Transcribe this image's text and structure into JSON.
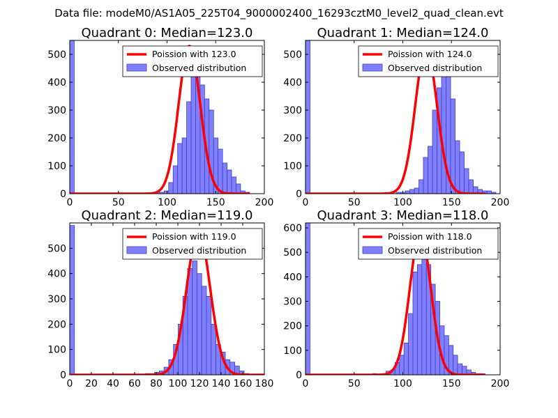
{
  "figure": {
    "suptitle": "Data file: modeM0/AS1A05_225T04_9000002400_16293cztM0_level2_quad_clean.evt",
    "colors": {
      "poisson_line": "#ff0000",
      "bar_fill": "#7f7fff",
      "bar_edge": "#3f3fbf"
    }
  },
  "chart_data": [
    {
      "type": "bar",
      "title": "Quadrant 0: Median=123.0",
      "xlim": [
        0,
        200
      ],
      "ylim": [
        0,
        550
      ],
      "xticks": [
        "0",
        "50",
        "100",
        "150",
        "200"
      ],
      "yticks": [
        "0",
        "100",
        "200",
        "300",
        "400",
        "500"
      ],
      "legend": {
        "location": "top-right",
        "entries": [
          "Poission with 123.0",
          "Observed distribution"
        ]
      },
      "median": 123.0,
      "poisson_peak": 530,
      "bins": {
        "start": 0,
        "width": 4.62,
        "values": [
          550,
          0,
          0,
          0,
          0,
          0,
          0,
          0,
          0,
          0,
          0,
          0,
          0,
          0,
          0,
          0,
          2,
          0,
          0,
          5,
          5,
          10,
          40,
          100,
          180,
          200,
          330,
          420,
          460,
          390,
          340,
          300,
          200,
          160,
          110,
          85,
          60,
          35,
          10,
          5
        ]
      }
    },
    {
      "type": "bar",
      "title": "Quadrant 1: Median=124.0",
      "xlim": [
        0,
        200
      ],
      "ylim": [
        0,
        550
      ],
      "xticks": [
        "0",
        "50",
        "100",
        "150",
        "200"
      ],
      "yticks": [
        "0",
        "100",
        "200",
        "300",
        "400",
        "500"
      ],
      "legend": {
        "location": "top-right",
        "entries": [
          "Poission with 124.0",
          "Observed distribution"
        ]
      },
      "median": 124.0,
      "poisson_peak": 525,
      "bins": {
        "start": 0,
        "width": 4.66,
        "values": [
          550,
          0,
          0,
          0,
          0,
          0,
          0,
          0,
          0,
          0,
          0,
          0,
          0,
          0,
          0,
          0,
          0,
          0,
          2,
          0,
          5,
          5,
          10,
          15,
          20,
          50,
          130,
          170,
          300,
          380,
          420,
          500,
          340,
          190,
          150,
          90,
          50,
          25,
          15,
          10,
          10,
          5
        ]
      }
    },
    {
      "type": "bar",
      "title": "Quadrant 2: Median=119.0",
      "xlim": [
        0,
        180
      ],
      "ylim": [
        0,
        600
      ],
      "xticks": [
        "0",
        "20",
        "40",
        "60",
        "80",
        "100",
        "120",
        "140",
        "160",
        "180"
      ],
      "yticks": [
        "0",
        "100",
        "200",
        "300",
        "400",
        "500"
      ],
      "legend": {
        "location": "top-right",
        "entries": [
          "Poission with 119.0",
          "Observed distribution"
        ]
      },
      "median": 119.0,
      "poisson_peak": 565,
      "bins": {
        "start": 0,
        "width": 4.36,
        "values": [
          590,
          0,
          0,
          0,
          0,
          0,
          0,
          0,
          0,
          0,
          0,
          0,
          0,
          0,
          0,
          2,
          5,
          5,
          10,
          15,
          30,
          60,
          120,
          200,
          310,
          420,
          450,
          400,
          350,
          310,
          200,
          120,
          90,
          60,
          50,
          35,
          15,
          5
        ]
      }
    },
    {
      "type": "bar",
      "title": "Quadrant 3: Median=118.0",
      "xlim": [
        0,
        200
      ],
      "ylim": [
        0,
        620
      ],
      "xticks": [
        "0",
        "50",
        "100",
        "150",
        "200"
      ],
      "yticks": [
        "0",
        "100",
        "200",
        "300",
        "400",
        "500",
        "600"
      ],
      "legend": {
        "location": "top-right",
        "entries": [
          "Poission with 118.0",
          "Observed distribution"
        ]
      },
      "median": 118.0,
      "poisson_peak": 580,
      "bins": {
        "start": 0,
        "width": 4.6,
        "values": [
          620,
          0,
          0,
          0,
          0,
          0,
          0,
          0,
          0,
          0,
          0,
          0,
          0,
          0,
          0,
          5,
          0,
          5,
          15,
          20,
          50,
          80,
          130,
          250,
          420,
          450,
          520,
          450,
          370,
          300,
          200,
          160,
          120,
          80,
          45,
          35,
          20,
          10,
          5,
          5
        ]
      }
    }
  ]
}
